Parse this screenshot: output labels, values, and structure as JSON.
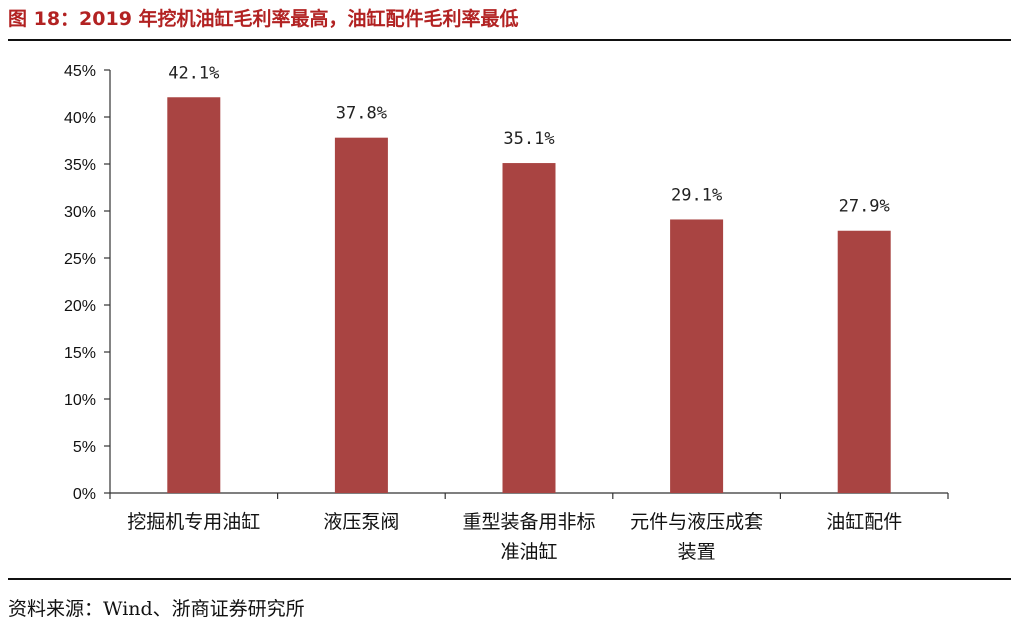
{
  "figure": {
    "title": "图 18：2019 年挖机油缸毛利率最高，油缸配件毛利率最低",
    "source": "资料来源：Wind、浙商证券研究所"
  },
  "chart_data": {
    "type": "bar",
    "categories": [
      [
        "挖掘机专用油缸"
      ],
      [
        "液压泵阀"
      ],
      [
        "重型装备用非标",
        "准油缸"
      ],
      [
        "元件与液压成套",
        "装置"
      ],
      [
        "油缸配件"
      ]
    ],
    "values": [
      42.1,
      37.8,
      35.1,
      29.1,
      27.9
    ],
    "data_labels": [
      "42.1%",
      "37.8%",
      "35.1%",
      "29.1%",
      "27.9%"
    ],
    "y_ticks": [
      "0%",
      "5%",
      "10%",
      "15%",
      "20%",
      "25%",
      "30%",
      "35%",
      "40%",
      "45%"
    ],
    "ylim": [
      0,
      45
    ],
    "xlabel": "",
    "ylabel": "",
    "grid": false,
    "legend": "none",
    "bar_color": "#a94442"
  }
}
